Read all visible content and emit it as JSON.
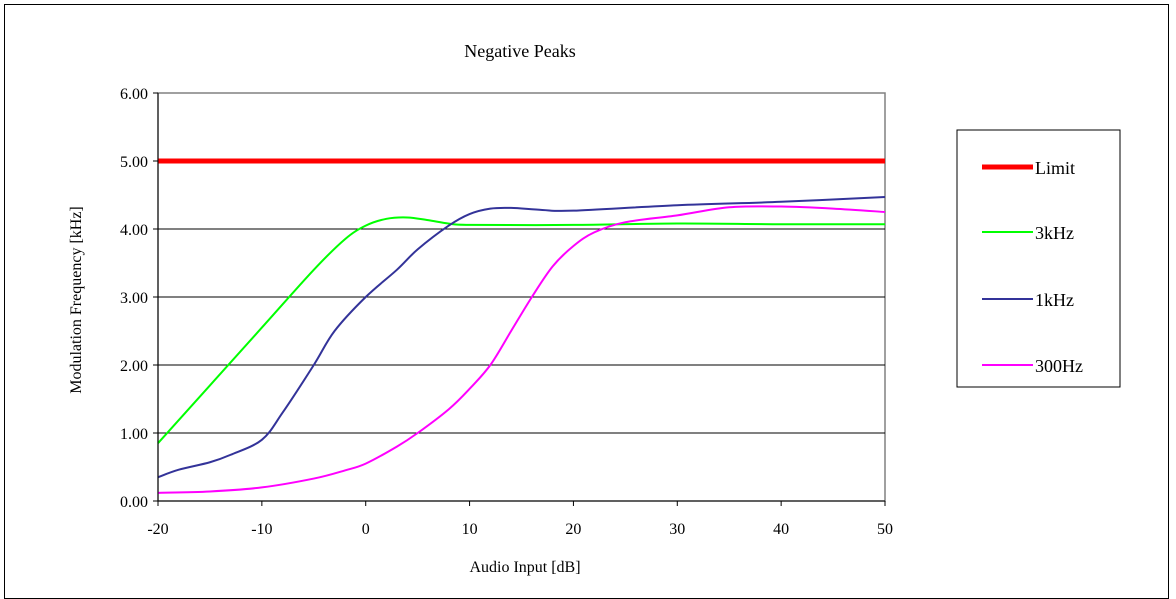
{
  "chart_data": {
    "type": "line",
    "title": "Negative Peaks",
    "xlabel": "Audio Input [dB]",
    "ylabel": "Modulation Frequency [kHz]",
    "xlim": [
      -20,
      50
    ],
    "ylim": [
      0,
      6
    ],
    "x_ticks": [
      -20,
      -10,
      0,
      10,
      20,
      30,
      40,
      50
    ],
    "y_ticks": [
      0,
      1,
      2,
      3,
      4,
      5,
      6
    ],
    "x_tick_labels": [
      "-20",
      "-10",
      "0",
      "10",
      "20",
      "30",
      "40",
      "50"
    ],
    "y_tick_labels": [
      "0.00",
      "1.00",
      "2.00",
      "3.00",
      "4.00",
      "5.00",
      "6.00"
    ],
    "grid": "horizontal",
    "legend_position": "right",
    "series": [
      {
        "name": "Limit",
        "color": "#ff0000",
        "width": "thick",
        "points": [
          [
            -20,
            5.0
          ],
          [
            50,
            5.0
          ]
        ]
      },
      {
        "name": "3kHz",
        "color": "#00ff00",
        "width": "normal",
        "points": [
          [
            -20,
            0.85
          ],
          [
            -15,
            1.7
          ],
          [
            -10,
            2.55
          ],
          [
            -5,
            3.4
          ],
          [
            -2,
            3.85
          ],
          [
            0,
            4.05
          ],
          [
            2,
            4.15
          ],
          [
            4,
            4.17
          ],
          [
            6,
            4.13
          ],
          [
            8,
            4.08
          ],
          [
            10,
            4.06
          ],
          [
            20,
            4.06
          ],
          [
            30,
            4.08
          ],
          [
            40,
            4.07
          ],
          [
            50,
            4.07
          ]
        ]
      },
      {
        "name": "1kHz",
        "color": "#333399",
        "width": "normal",
        "points": [
          [
            -20,
            0.35
          ],
          [
            -18,
            0.46
          ],
          [
            -15,
            0.57
          ],
          [
            -13,
            0.68
          ],
          [
            -10,
            0.9
          ],
          [
            -8,
            1.3
          ],
          [
            -5,
            2.0
          ],
          [
            -3,
            2.5
          ],
          [
            0,
            3.0
          ],
          [
            3,
            3.4
          ],
          [
            5,
            3.7
          ],
          [
            8,
            4.05
          ],
          [
            10,
            4.22
          ],
          [
            12,
            4.3
          ],
          [
            14,
            4.31
          ],
          [
            17,
            4.28
          ],
          [
            20,
            4.27
          ],
          [
            30,
            4.35
          ],
          [
            40,
            4.4
          ],
          [
            50,
            4.47
          ]
        ]
      },
      {
        "name": "300Hz",
        "color": "#ff00ff",
        "width": "normal",
        "points": [
          [
            -20,
            0.12
          ],
          [
            -15,
            0.14
          ],
          [
            -10,
            0.2
          ],
          [
            -5,
            0.33
          ],
          [
            -2,
            0.45
          ],
          [
            0,
            0.55
          ],
          [
            3,
            0.8
          ],
          [
            5,
            1.0
          ],
          [
            8,
            1.35
          ],
          [
            10,
            1.65
          ],
          [
            12,
            2.0
          ],
          [
            14,
            2.5
          ],
          [
            16,
            3.0
          ],
          [
            18,
            3.45
          ],
          [
            20,
            3.75
          ],
          [
            22,
            3.95
          ],
          [
            25,
            4.1
          ],
          [
            30,
            4.2
          ],
          [
            35,
            4.32
          ],
          [
            40,
            4.33
          ],
          [
            45,
            4.3
          ],
          [
            50,
            4.25
          ]
        ]
      }
    ]
  }
}
